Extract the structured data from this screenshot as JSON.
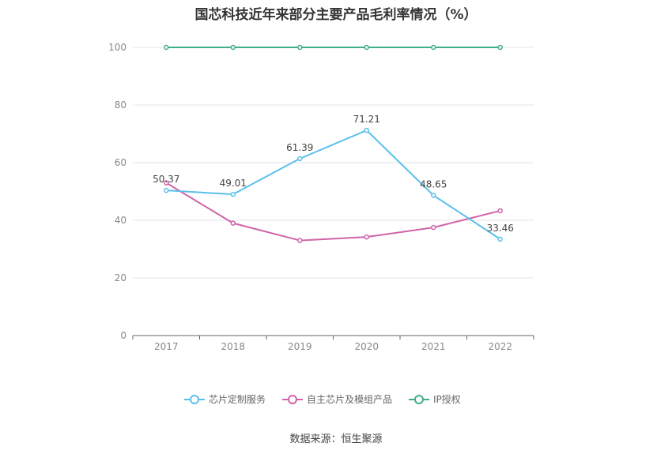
{
  "chart_data": {
    "type": "line",
    "title": "国芯科技近年来部分主要产品毛利率情况（%）",
    "categories": [
      "2017",
      "2018",
      "2019",
      "2020",
      "2021",
      "2022"
    ],
    "ylim": [
      0,
      100
    ],
    "yticks": [
      0,
      20,
      40,
      60,
      80,
      100
    ],
    "grid": true,
    "legend_position": "bottom",
    "series": [
      {
        "name": "芯片定制服务",
        "color": "#5bc0eb",
        "values": [
          50.37,
          49.01,
          61.39,
          71.21,
          48.65,
          33.46
        ],
        "labels": [
          "50.37",
          "49.01",
          "61.39",
          "71.21",
          "48.65",
          "33.46"
        ]
      },
      {
        "name": "自主芯片及模组产品",
        "color": "#d063a8",
        "values": [
          53.0,
          39.0,
          33.0,
          34.2,
          37.5,
          43.3
        ]
      },
      {
        "name": "IP授权",
        "color": "#3fae8a",
        "values": [
          100,
          100,
          100,
          100,
          100,
          100
        ]
      }
    ]
  },
  "source": "数据来源：恒生聚源"
}
